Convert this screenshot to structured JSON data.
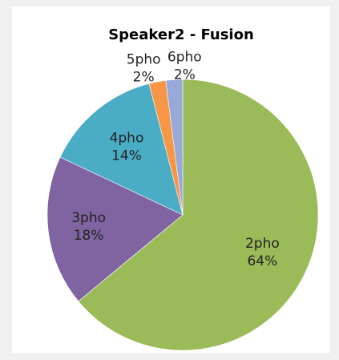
{
  "chart_data": {
    "type": "pie",
    "title": "Speaker2 - Fusion",
    "categories": [
      "2pho",
      "3pho",
      "4pho",
      "5pho",
      "6pho"
    ],
    "values": [
      64,
      18,
      14,
      2,
      2
    ],
    "value_labels": [
      "64%",
      "18%",
      "14%",
      "2%",
      "2%"
    ],
    "colors": [
      "#9bbb59",
      "#8064a2",
      "#4bacc6",
      "#f79646",
      "#98a8d8"
    ]
  }
}
